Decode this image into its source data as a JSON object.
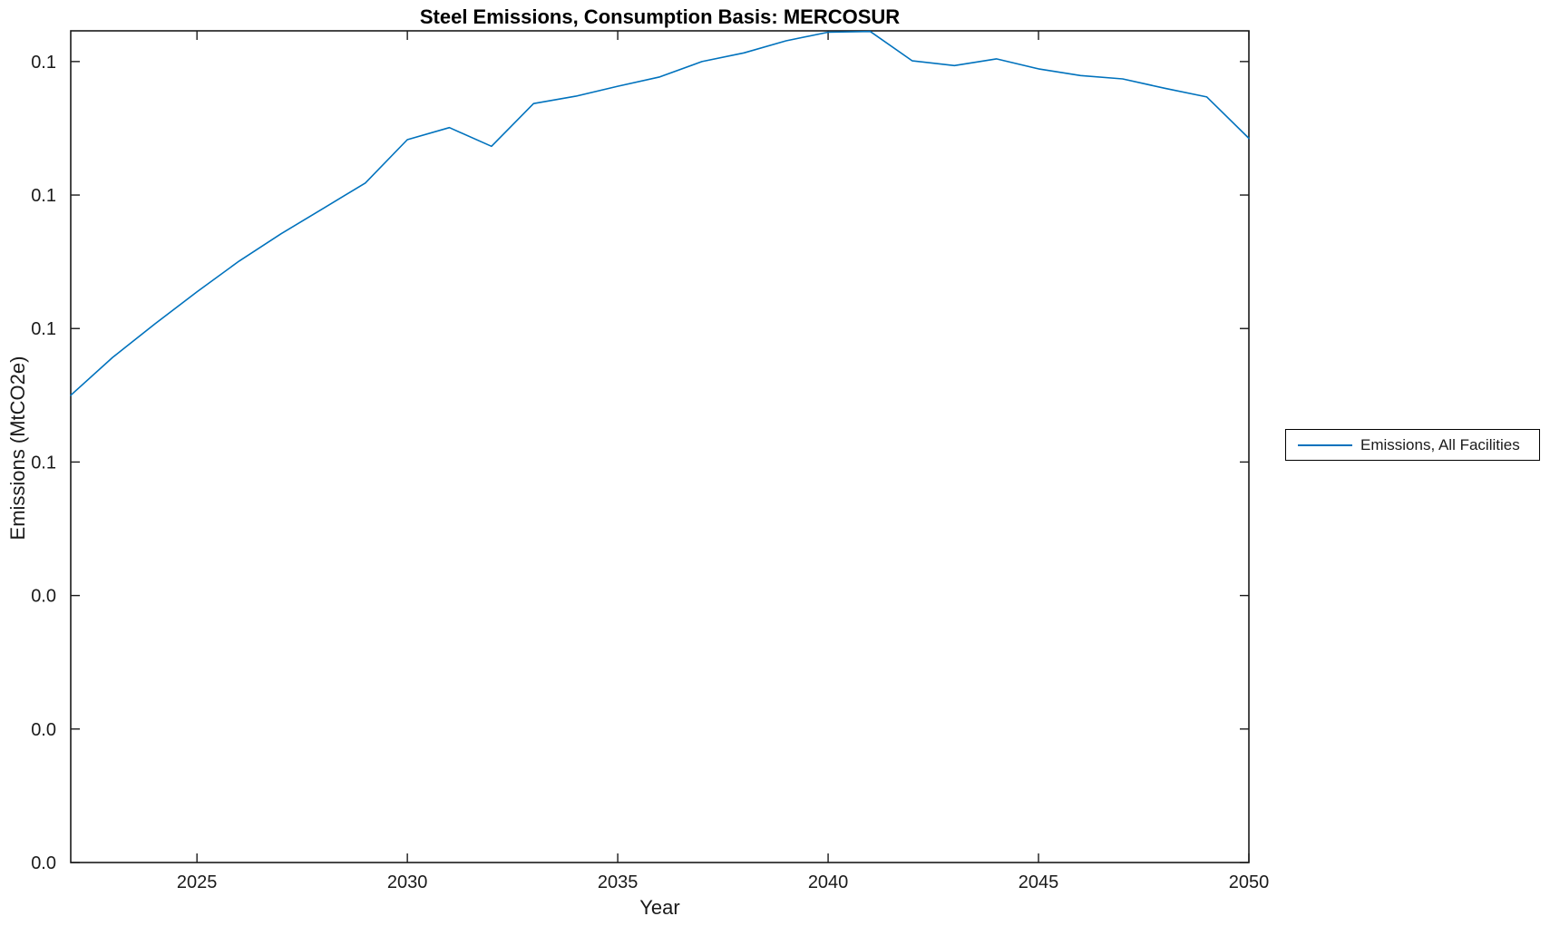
{
  "title": "Steel Emissions, Consumption Basis: MERCOSUR",
  "axes": {
    "xlabel": "Year",
    "ylabel": "Emissions (MtCO2e)"
  },
  "legend": {
    "position": "right-outside",
    "entries": [
      {
        "label": "Emissions, All Facilities",
        "color": "#0072BD"
      }
    ]
  },
  "chart_data": {
    "type": "line",
    "title": "Steel Emissions, Consumption Basis: MERCOSUR",
    "xlabel": "Year",
    "ylabel": "Emissions (MtCO2e)",
    "xlim": [
      2022,
      2050
    ],
    "ylim": [
      0,
      0.1246
    ],
    "x_ticks": [
      2025,
      2030,
      2035,
      2040,
      2045,
      2050
    ],
    "x_tick_labels": [
      "2025",
      "2030",
      "2035",
      "2040",
      "2045",
      "2050"
    ],
    "y_ticks": [
      0,
      0.02,
      0.04,
      0.06,
      0.08,
      0.1,
      0.12
    ],
    "y_tick_labels": [
      "0.0",
      "0.0",
      "0.0",
      "0.1",
      "0.1",
      "0.1",
      "0.1"
    ],
    "grid": false,
    "legend_position": "right-outside",
    "line_color": "#0072BD",
    "axis_color": "#1a1a1a",
    "series": [
      {
        "name": "Emissions, All Facilities",
        "color": "#0072BD",
        "x": [
          2022,
          2023,
          2024,
          2025,
          2026,
          2027,
          2028,
          2029,
          2030,
          2031,
          2032,
          2033,
          2034,
          2035,
          2036,
          2037,
          2038,
          2039,
          2040,
          2041,
          2042,
          2043,
          2044,
          2045,
          2046,
          2047,
          2048,
          2049,
          2050
        ],
        "values": [
          0.07,
          0.0757,
          0.0807,
          0.0855,
          0.0901,
          0.0942,
          0.098,
          0.1018,
          0.1083,
          0.1101,
          0.1073,
          0.1137,
          0.1148,
          0.1163,
          0.1177,
          0.12,
          0.1213,
          0.1231,
          0.1244,
          0.1245,
          0.1201,
          0.1194,
          0.1204,
          0.1189,
          0.1179,
          0.1174,
          0.116,
          0.1147,
          0.1085
        ]
      }
    ]
  }
}
